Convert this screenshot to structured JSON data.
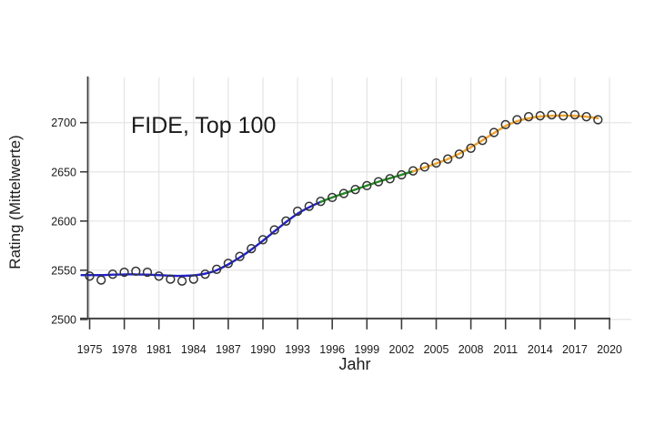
{
  "figure": {
    "title": "FIDE, Top 100",
    "xlabel": "Jahr",
    "ylabel": "Rating (Mittelwerte)"
  },
  "chart_data": {
    "type": "scatter",
    "title": "FIDE, Top 100",
    "xlabel": "Jahr",
    "ylabel": "Rating (Mittelwerte)",
    "grid": true,
    "legend": false,
    "xlim": [
      1974.84,
      2021.89
    ],
    "ylim": [
      2501,
      2746
    ],
    "x_ticks": [
      1975,
      1978,
      1981,
      1984,
      1987,
      1990,
      1993,
      1996,
      1999,
      2002,
      2005,
      2008,
      2011,
      2014,
      2017,
      2020
    ],
    "y_ticks": [
      2500,
      2550,
      2600,
      2650,
      2700
    ],
    "series": [
      {
        "name": "top-100-mean-rating",
        "marker": "open-circle",
        "marker_color": "#333333",
        "x": [
          1975,
          1976,
          1977,
          1978,
          1979,
          1980,
          1981,
          1982,
          1983,
          1984,
          1985,
          1986,
          1987,
          1988,
          1989,
          1990,
          1991,
          1992,
          1993,
          1994,
          1995,
          1996,
          1997,
          1998,
          1999,
          2000,
          2001,
          2002,
          2003,
          2004,
          2005,
          2006,
          2007,
          2008,
          2009,
          2010,
          2011,
          2012,
          2013,
          2014,
          2015,
          2016,
          2017,
          2018,
          2019
        ],
        "y": [
          2544,
          2540,
          2546,
          2548,
          2549,
          2548,
          2544,
          2541,
          2539,
          2541,
          2546,
          2551,
          2557,
          2564,
          2572,
          2581,
          2591,
          2600,
          2610,
          2615,
          2620,
          2624,
          2628,
          2632,
          2636,
          2640,
          2643,
          2647,
          2651,
          2655,
          2659,
          2663,
          2668,
          2674,
          2682,
          2690,
          2698,
          2703,
          2706,
          2707,
          2708,
          2707,
          2708,
          2706,
          2703
        ]
      }
    ],
    "trend": {
      "name": "fitted-trend-curve",
      "x": [
        1974.3,
        1975,
        1976,
        1977,
        1978,
        1979,
        1980,
        1981,
        1982,
        1983,
        1984,
        1985,
        1986,
        1987,
        1988,
        1989,
        1990,
        1991,
        1992,
        1993,
        1994,
        1995,
        1996,
        1997,
        1998,
        1999,
        2000,
        2001,
        2002,
        2003,
        2004,
        2005,
        2006,
        2007,
        2008,
        2009,
        2010,
        2011,
        2012,
        2013,
        2014,
        2015,
        2016,
        2017,
        2018,
        2019
      ],
      "y": [
        2545,
        2545,
        2545,
        2545.5,
        2545.8,
        2545.8,
        2545.5,
        2545,
        2544.5,
        2544.3,
        2544.8,
        2546.5,
        2550,
        2556,
        2563,
        2571,
        2580,
        2589.5,
        2599,
        2607.5,
        2614,
        2619.5,
        2624,
        2628,
        2632,
        2636,
        2640,
        2643.5,
        2647,
        2650.5,
        2654.5,
        2658.5,
        2663,
        2668.5,
        2675,
        2682,
        2689.5,
        2696.5,
        2701.5,
        2704.5,
        2706.3,
        2707,
        2707.2,
        2707,
        2706,
        2704.5
      ],
      "segments": [
        {
          "name": "trend-segment-early",
          "color": "#2121C8",
          "from": 1974.3,
          "to": 1995
        },
        {
          "name": "trend-segment-middle",
          "color": "#228B22",
          "from": 1995,
          "to": 2003
        },
        {
          "name": "trend-segment-late",
          "color": "#F0A32C",
          "from": 2003,
          "to": 2019
        }
      ]
    },
    "colors": {
      "axis": "#3d3d3d",
      "grid": "#e4e4e4",
      "text": "#1a1a1a",
      "marker": "#333333",
      "trend_blue": "#2121C8",
      "trend_green": "#228B22",
      "trend_orange": "#F0A32C",
      "background": "#ffffff"
    }
  }
}
